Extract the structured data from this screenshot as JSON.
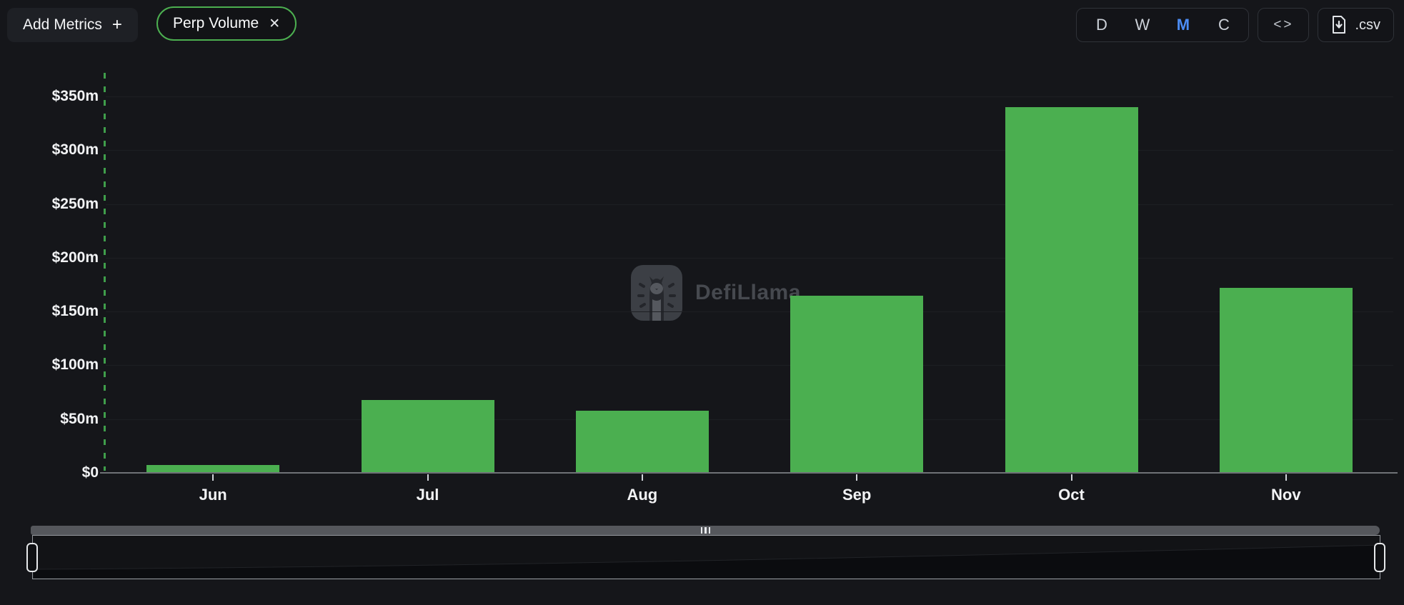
{
  "header": {
    "add_metrics": {
      "label": "Add Metrics",
      "plus": "+"
    },
    "chip": {
      "label": "Perp Volume",
      "close": "✕",
      "border_color": "#4caf50"
    },
    "range": {
      "options": [
        {
          "label": "D",
          "active": false
        },
        {
          "label": "W",
          "active": false
        },
        {
          "label": "M",
          "active": true
        },
        {
          "label": "C",
          "active": false
        }
      ],
      "active_color": "#4c8df5"
    },
    "code_button": {
      "label": "<>"
    },
    "csv_button": {
      "label": ".csv",
      "icon": "file-download-icon"
    }
  },
  "watermark": {
    "text": "DefiLlama",
    "icon": "defillama-llama-logo"
  },
  "chart_data": {
    "type": "bar",
    "series_name": "Perp Volume",
    "categories": [
      "Jun",
      "Jul",
      "Aug",
      "Sep",
      "Oct",
      "Nov"
    ],
    "values": [
      7,
      68,
      58,
      165,
      340,
      172
    ],
    "unit": "million USD",
    "value_format": "$m",
    "ylim": [
      0,
      350
    ],
    "ytick_step": 50,
    "ytick_labels": [
      "$0",
      "$50m",
      "$100m",
      "$150m",
      "$200m",
      "$250m",
      "$300m",
      "$350m"
    ],
    "bar_color": "#4baf50",
    "axis_dash_color": "#3f9e4b",
    "grid": "faint-horizontal",
    "legend": "none"
  },
  "brush": {
    "grip_icon": "drag-grip",
    "left_handle": "range-start",
    "right_handle": "range-end"
  }
}
